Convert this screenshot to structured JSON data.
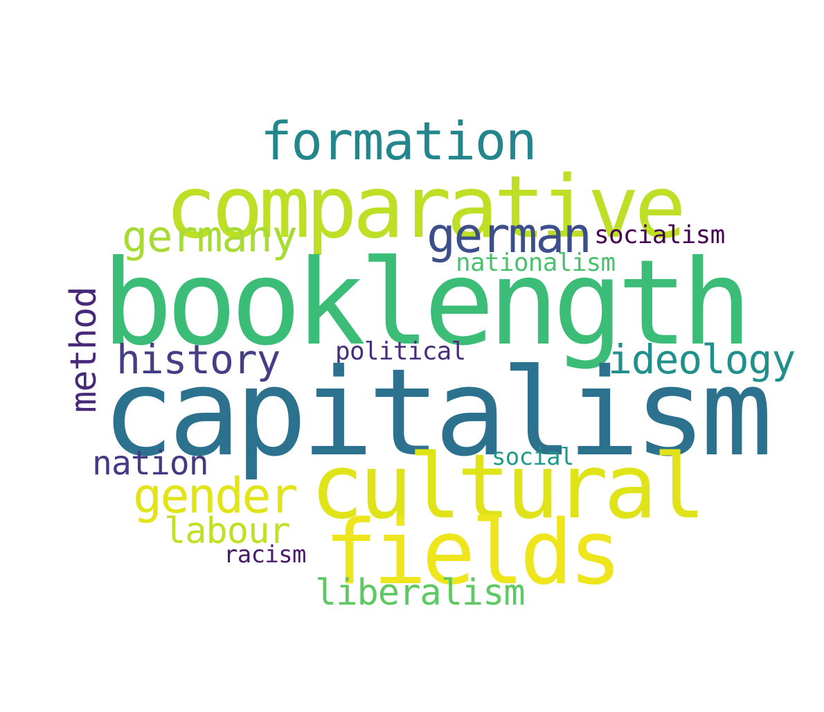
{
  "words": {
    "booklength": {
      "text": "booklength",
      "color": "#3bbd78"
    },
    "capitalism": {
      "text": "capitalism",
      "color": "#2c728e"
    },
    "comparative": {
      "text": "comparative",
      "color": "#bddf26"
    },
    "cultural": {
      "text": "cultural",
      "color": "#dfe318"
    },
    "fields": {
      "text": "fields",
      "color": "#efe51c"
    },
    "formation": {
      "text": "formation",
      "color": "#23868d"
    },
    "german": {
      "text": "german",
      "color": "#3d4f8a"
    },
    "germany": {
      "text": "germany",
      "color": "#a8db34"
    },
    "socialism": {
      "text": "socialism",
      "color": "#440154"
    },
    "nationalism": {
      "text": "nationalism",
      "color": "#4ac16d"
    },
    "history": {
      "text": "history",
      "color": "#433e85"
    },
    "political": {
      "text": "political",
      "color": "#472d7b"
    },
    "ideology": {
      "text": "ideology",
      "color": "#21908d"
    },
    "method": {
      "text": "method",
      "color": "#482878"
    },
    "nation": {
      "text": "nation",
      "color": "#443983"
    },
    "social": {
      "text": "social",
      "color": "#1f9a8a"
    },
    "gender": {
      "text": "gender",
      "color": "#e2e418"
    },
    "labour": {
      "text": "labour",
      "color": "#c2df23"
    },
    "racism": {
      "text": "racism",
      "color": "#481a6c"
    },
    "liberalism": {
      "text": "liberalism",
      "color": "#5ec962"
    }
  }
}
